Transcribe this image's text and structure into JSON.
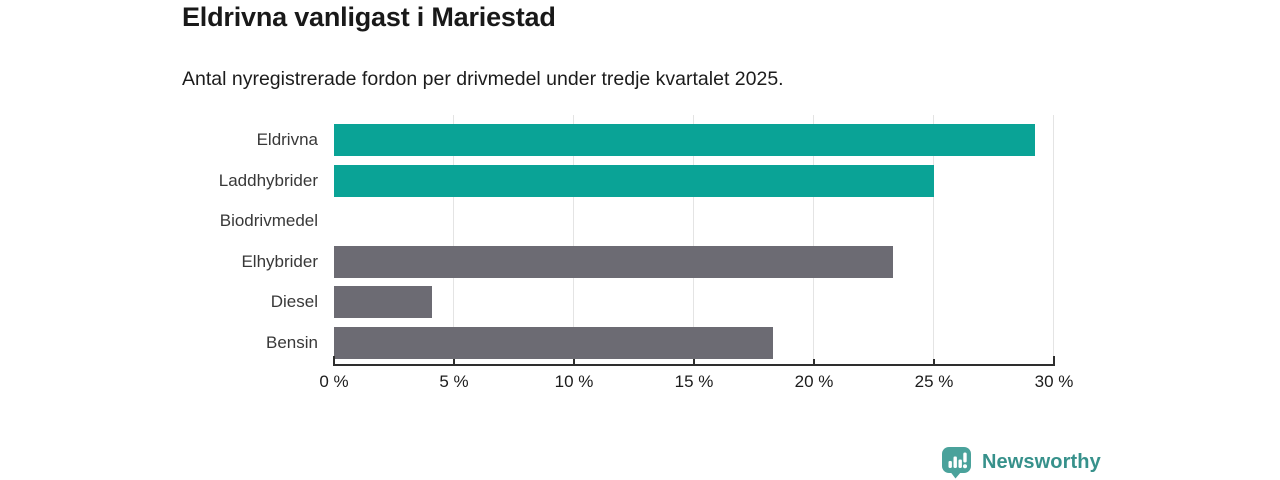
{
  "header": {
    "title": "Eldrivna vanligast i Mariestad",
    "subtitle": "Antal nyregistrerade fordon per drivmedel under tredje kvartalet 2025."
  },
  "chart_data": {
    "type": "bar",
    "orientation": "horizontal",
    "title": "Eldrivna vanligast i Mariestad",
    "subtitle": "Antal nyregistrerade fordon per drivmedel under tredje kvartalet 2025.",
    "categories": [
      "Eldrivna",
      "Laddhybrider",
      "Biodrivmedel",
      "Elhybrider",
      "Diesel",
      "Bensin"
    ],
    "values": [
      29.2,
      25.0,
      0,
      23.3,
      4.1,
      18.3
    ],
    "unit": "%",
    "bar_colors": [
      "#0aa396",
      "#0aa396",
      "#6c6b73",
      "#6c6b73",
      "#6c6b73",
      "#6c6b73"
    ],
    "xlabel": "",
    "ylabel": "",
    "xlim": [
      0,
      30
    ],
    "x_ticks": [
      0,
      5,
      10,
      15,
      20,
      25,
      30
    ],
    "x_tick_labels": [
      "0 %",
      "5 %",
      "10 %",
      "15 %",
      "20 %",
      "25 %",
      "30 %"
    ],
    "grid": "vertical",
    "legend": false
  },
  "branding": {
    "logo_text": "Newsworthy",
    "logo_icon": "bar-chart-speech-bubble-icon",
    "text_color": "#37918b",
    "icon_color": "#4aa29b"
  },
  "colors": {
    "teal_bar": "#0aa396",
    "gray_bar": "#6c6b73",
    "gridline": "#e4e4e4",
    "axis": "#2e2e2e",
    "title_text": "#191919",
    "body_text": "#1c1c1c"
  }
}
